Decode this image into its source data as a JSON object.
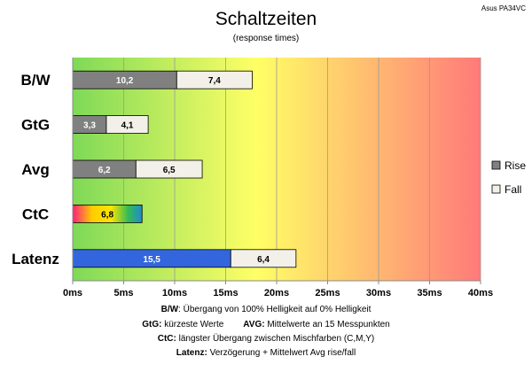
{
  "chart_data": {
    "type": "bar",
    "stacked": true,
    "orientation": "horizontal",
    "title": "Schaltzeiten",
    "subtitle": "(response times)",
    "corner_label": "Asus PA34VC",
    "categories": [
      "B/W",
      "GtG",
      "Avg",
      "CtC",
      "Latenz"
    ],
    "series": [
      {
        "name": "Rise",
        "values": [
          10.2,
          3.3,
          6.2,
          6.8,
          15.5
        ],
        "labels": [
          "10,2",
          "3,3",
          "6,2",
          "6,8",
          "15,5"
        ]
      },
      {
        "name": "Fall",
        "values": [
          7.4,
          4.1,
          6.5,
          null,
          6.4
        ],
        "labels": [
          "7,4",
          "4,1",
          "6,5",
          "",
          "6,4"
        ]
      }
    ],
    "xlim": [
      0,
      40
    ],
    "xticks": [
      0,
      5,
      10,
      15,
      20,
      25,
      30,
      35,
      40
    ],
    "xtick_labels": [
      "0ms",
      "5ms",
      "10ms",
      "15ms",
      "20ms",
      "25ms",
      "30ms",
      "35ms",
      "40ms"
    ],
    "legend": {
      "position": "right",
      "entries": [
        "Rise",
        "Fall"
      ]
    },
    "grid": true,
    "background_gradient": [
      "#7ed957",
      "#ffff66",
      "#ff7a7a"
    ],
    "colors": {
      "rise": "#808080",
      "fall": "#f2f0e8",
      "latenz_rise": "#3366dd",
      "bar_border": "#000000"
    },
    "footnotes": [
      {
        "bold": "B/W",
        "text": ":  Übergang von 100% Helligkeit auf 0% Helligkeit"
      },
      {
        "bold": "GtG:",
        "text": " kürzeste  Werte",
        "bold2": "AVG:",
        "text2": " Mittelwerte  an 15 Messpunkten"
      },
      {
        "bold": "CtC:",
        "text": " längster Übergang  zwischen Mischfarben  (C,M,Y)"
      },
      {
        "bold": "Latenz:",
        "text": " Verzögerung  + Mittelwert  Avg rise/fall"
      }
    ]
  }
}
